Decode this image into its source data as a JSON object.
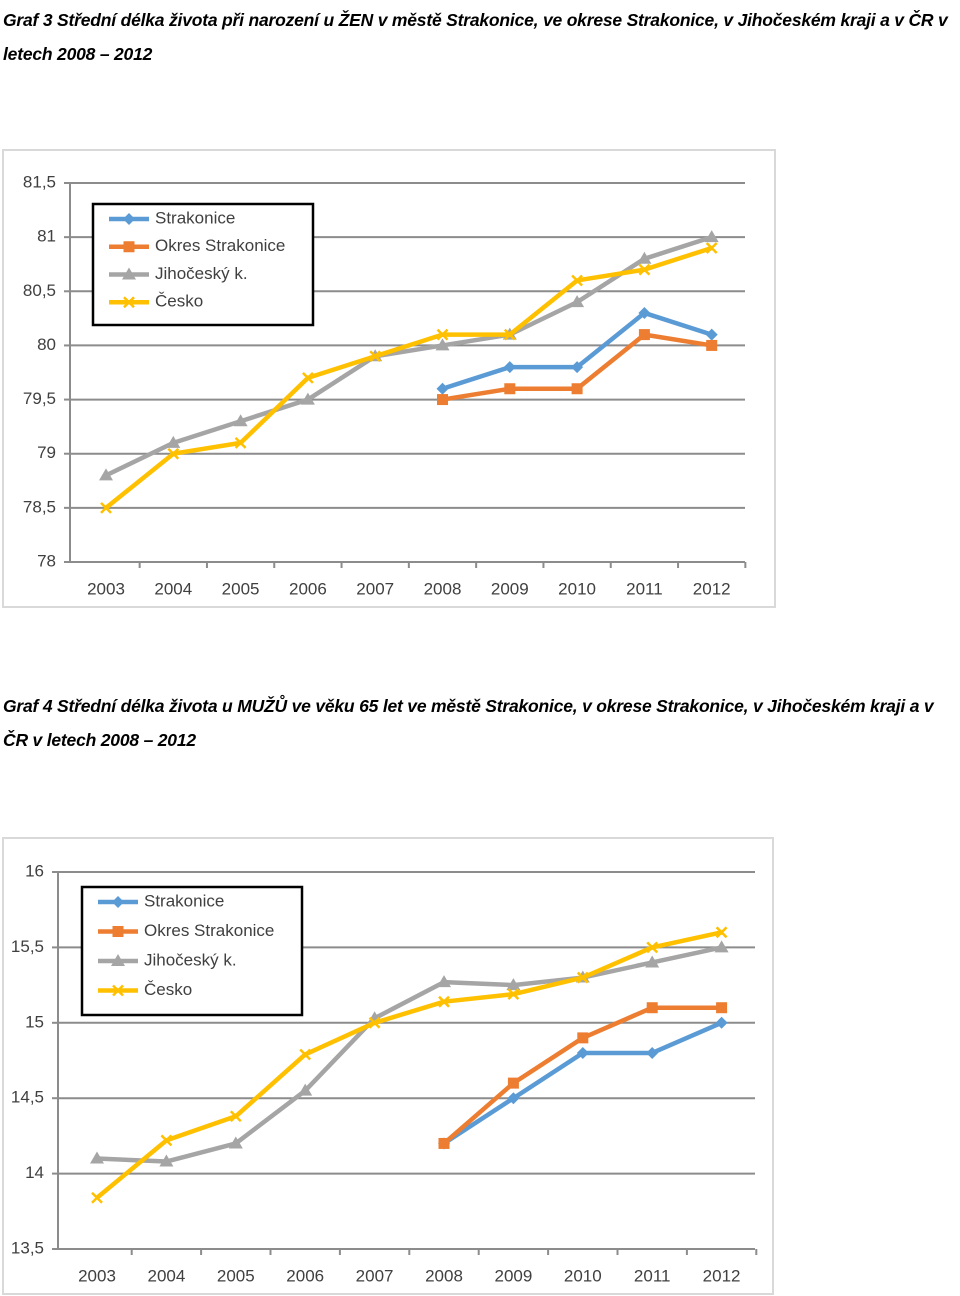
{
  "chart_data": [
    {
      "type": "line",
      "title": "Graf 3 Střední délka života při narození u ŽEN v městě Strakonice, ve okrese Strakonice, v Jihočeském kraji a v ČR v letech 2008 – 2012",
      "categories": [
        "2003",
        "2004",
        "2005",
        "2006",
        "2007",
        "2008",
        "2009",
        "2010",
        "2011",
        "2012"
      ],
      "ylim": [
        78,
        81.5
      ],
      "yticks": [
        78,
        {
          "value": 78.5,
          "label": "78,5"
        },
        79,
        {
          "value": 79.5,
          "label": "79,5"
        },
        80,
        {
          "value": 80.5,
          "label": "80,5"
        },
        81,
        {
          "value": 81.5,
          "label": "81,5"
        }
      ],
      "grid": true,
      "legend": "upper left",
      "series": [
        {
          "name": "Strakonice",
          "color": "#5b9bd5",
          "marker": "diamond",
          "values": [
            null,
            null,
            null,
            null,
            null,
            79.6,
            79.8,
            79.8,
            80.3,
            80.1
          ]
        },
        {
          "name": "Okres Strakonice",
          "color": "#ed7d31",
          "marker": "square",
          "values": [
            null,
            null,
            null,
            null,
            null,
            79.5,
            79.6,
            79.6,
            80.1,
            80.0
          ]
        },
        {
          "name": "Jihočeský k.",
          "color": "#a5a5a5",
          "marker": "triangle",
          "values": [
            78.8,
            79.1,
            79.3,
            79.5,
            79.9,
            80.0,
            80.1,
            80.4,
            80.8,
            81.0
          ]
        },
        {
          "name": "Česko",
          "color": "#ffc000",
          "marker": "x",
          "values": [
            78.5,
            79.0,
            79.1,
            79.7,
            79.9,
            80.1,
            80.1,
            80.6,
            80.7,
            80.9
          ]
        }
      ]
    },
    {
      "type": "line",
      "title": "Graf 4 Střední délka života u MUŽŮ ve věku 65 let ve městě Strakonice, v okrese Strakonice, v Jihočeském kraji a v ČR v letech 2008 – 2012",
      "categories": [
        "2003",
        "2004",
        "2005",
        "2006",
        "2007",
        "2008",
        "2009",
        "2010",
        "2011",
        "2012"
      ],
      "ylim": [
        13.5,
        16
      ],
      "yticks": [
        {
          "value": 13.5,
          "label": "13,5"
        },
        14,
        {
          "value": 14.5,
          "label": "14,5"
        },
        15,
        {
          "value": 15.5,
          "label": "15,5"
        },
        16
      ],
      "grid": true,
      "legend": "upper left",
      "series": [
        {
          "name": "Strakonice",
          "color": "#5b9bd5",
          "marker": "diamond",
          "values": [
            null,
            null,
            null,
            null,
            null,
            14.2,
            14.5,
            14.8,
            14.8,
            15.0
          ]
        },
        {
          "name": "Okres Strakonice",
          "color": "#ed7d31",
          "marker": "square",
          "values": [
            null,
            null,
            null,
            null,
            null,
            14.2,
            14.6,
            14.9,
            15.1,
            15.1
          ]
        },
        {
          "name": "Jihočeský k.",
          "color": "#a5a5a5",
          "marker": "triangle",
          "values": [
            14.1,
            14.08,
            14.2,
            14.55,
            15.03,
            15.27,
            15.25,
            15.3,
            15.4,
            15.5
          ]
        },
        {
          "name": "Česko",
          "color": "#ffc000",
          "marker": "x",
          "values": [
            13.84,
            14.22,
            14.38,
            14.79,
            15.0,
            15.14,
            15.19,
            15.3,
            15.5,
            15.6
          ]
        }
      ]
    }
  ]
}
